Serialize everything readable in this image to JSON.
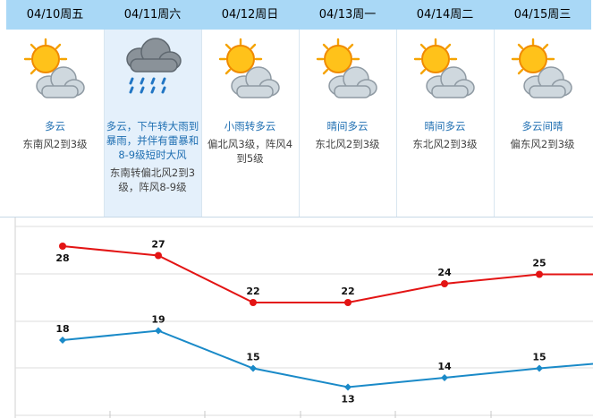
{
  "days": [
    {
      "date": "04/10周五",
      "weather": "多云",
      "icon": "partly-cloudy-icon",
      "wind": "东南风2到3级",
      "extra": ""
    },
    {
      "date": "04/11周六",
      "weather": "多云，下午转大雨到暴雨，并伴有雷暴和8-9级短时大风",
      "icon": "rain-icon",
      "wind": "东南转偏北风2到3级，阵风8-9级",
      "extra": ""
    },
    {
      "date": "04/12周日",
      "weather": "小雨转多云",
      "icon": "partly-cloudy-icon",
      "wind": "偏北风3级，阵风4到5级",
      "extra": ""
    },
    {
      "date": "04/13周一",
      "weather": "晴间多云",
      "icon": "partly-cloudy-icon",
      "wind": "东北风2到3级",
      "extra": ""
    },
    {
      "date": "04/14周二",
      "weather": "晴间多云",
      "icon": "partly-cloudy-icon",
      "wind": "东北风2到3级",
      "extra": ""
    },
    {
      "date": "04/15周三",
      "weather": "多云间晴",
      "icon": "partly-cloudy-icon",
      "wind": "偏东风2到3级",
      "extra": ""
    }
  ],
  "colors": {
    "header": "#a9d8f6",
    "selected": "#e4f0fb",
    "high": "#e31414",
    "low": "#1a8ac8",
    "text_blue": "#1f6fb2"
  },
  "chart_data": {
    "type": "line",
    "categories": [
      "04/10",
      "04/11",
      "04/12",
      "04/13",
      "04/14",
      "04/15"
    ],
    "series": [
      {
        "values": [
          28,
          27,
          22,
          22,
          24,
          25
        ],
        "color": "#e31414"
      },
      {
        "values": [
          18,
          19,
          15,
          13,
          14,
          15
        ],
        "color": "#1a8ac8"
      }
    ],
    "ylim": [
      10,
      30
    ],
    "grid": true
  }
}
